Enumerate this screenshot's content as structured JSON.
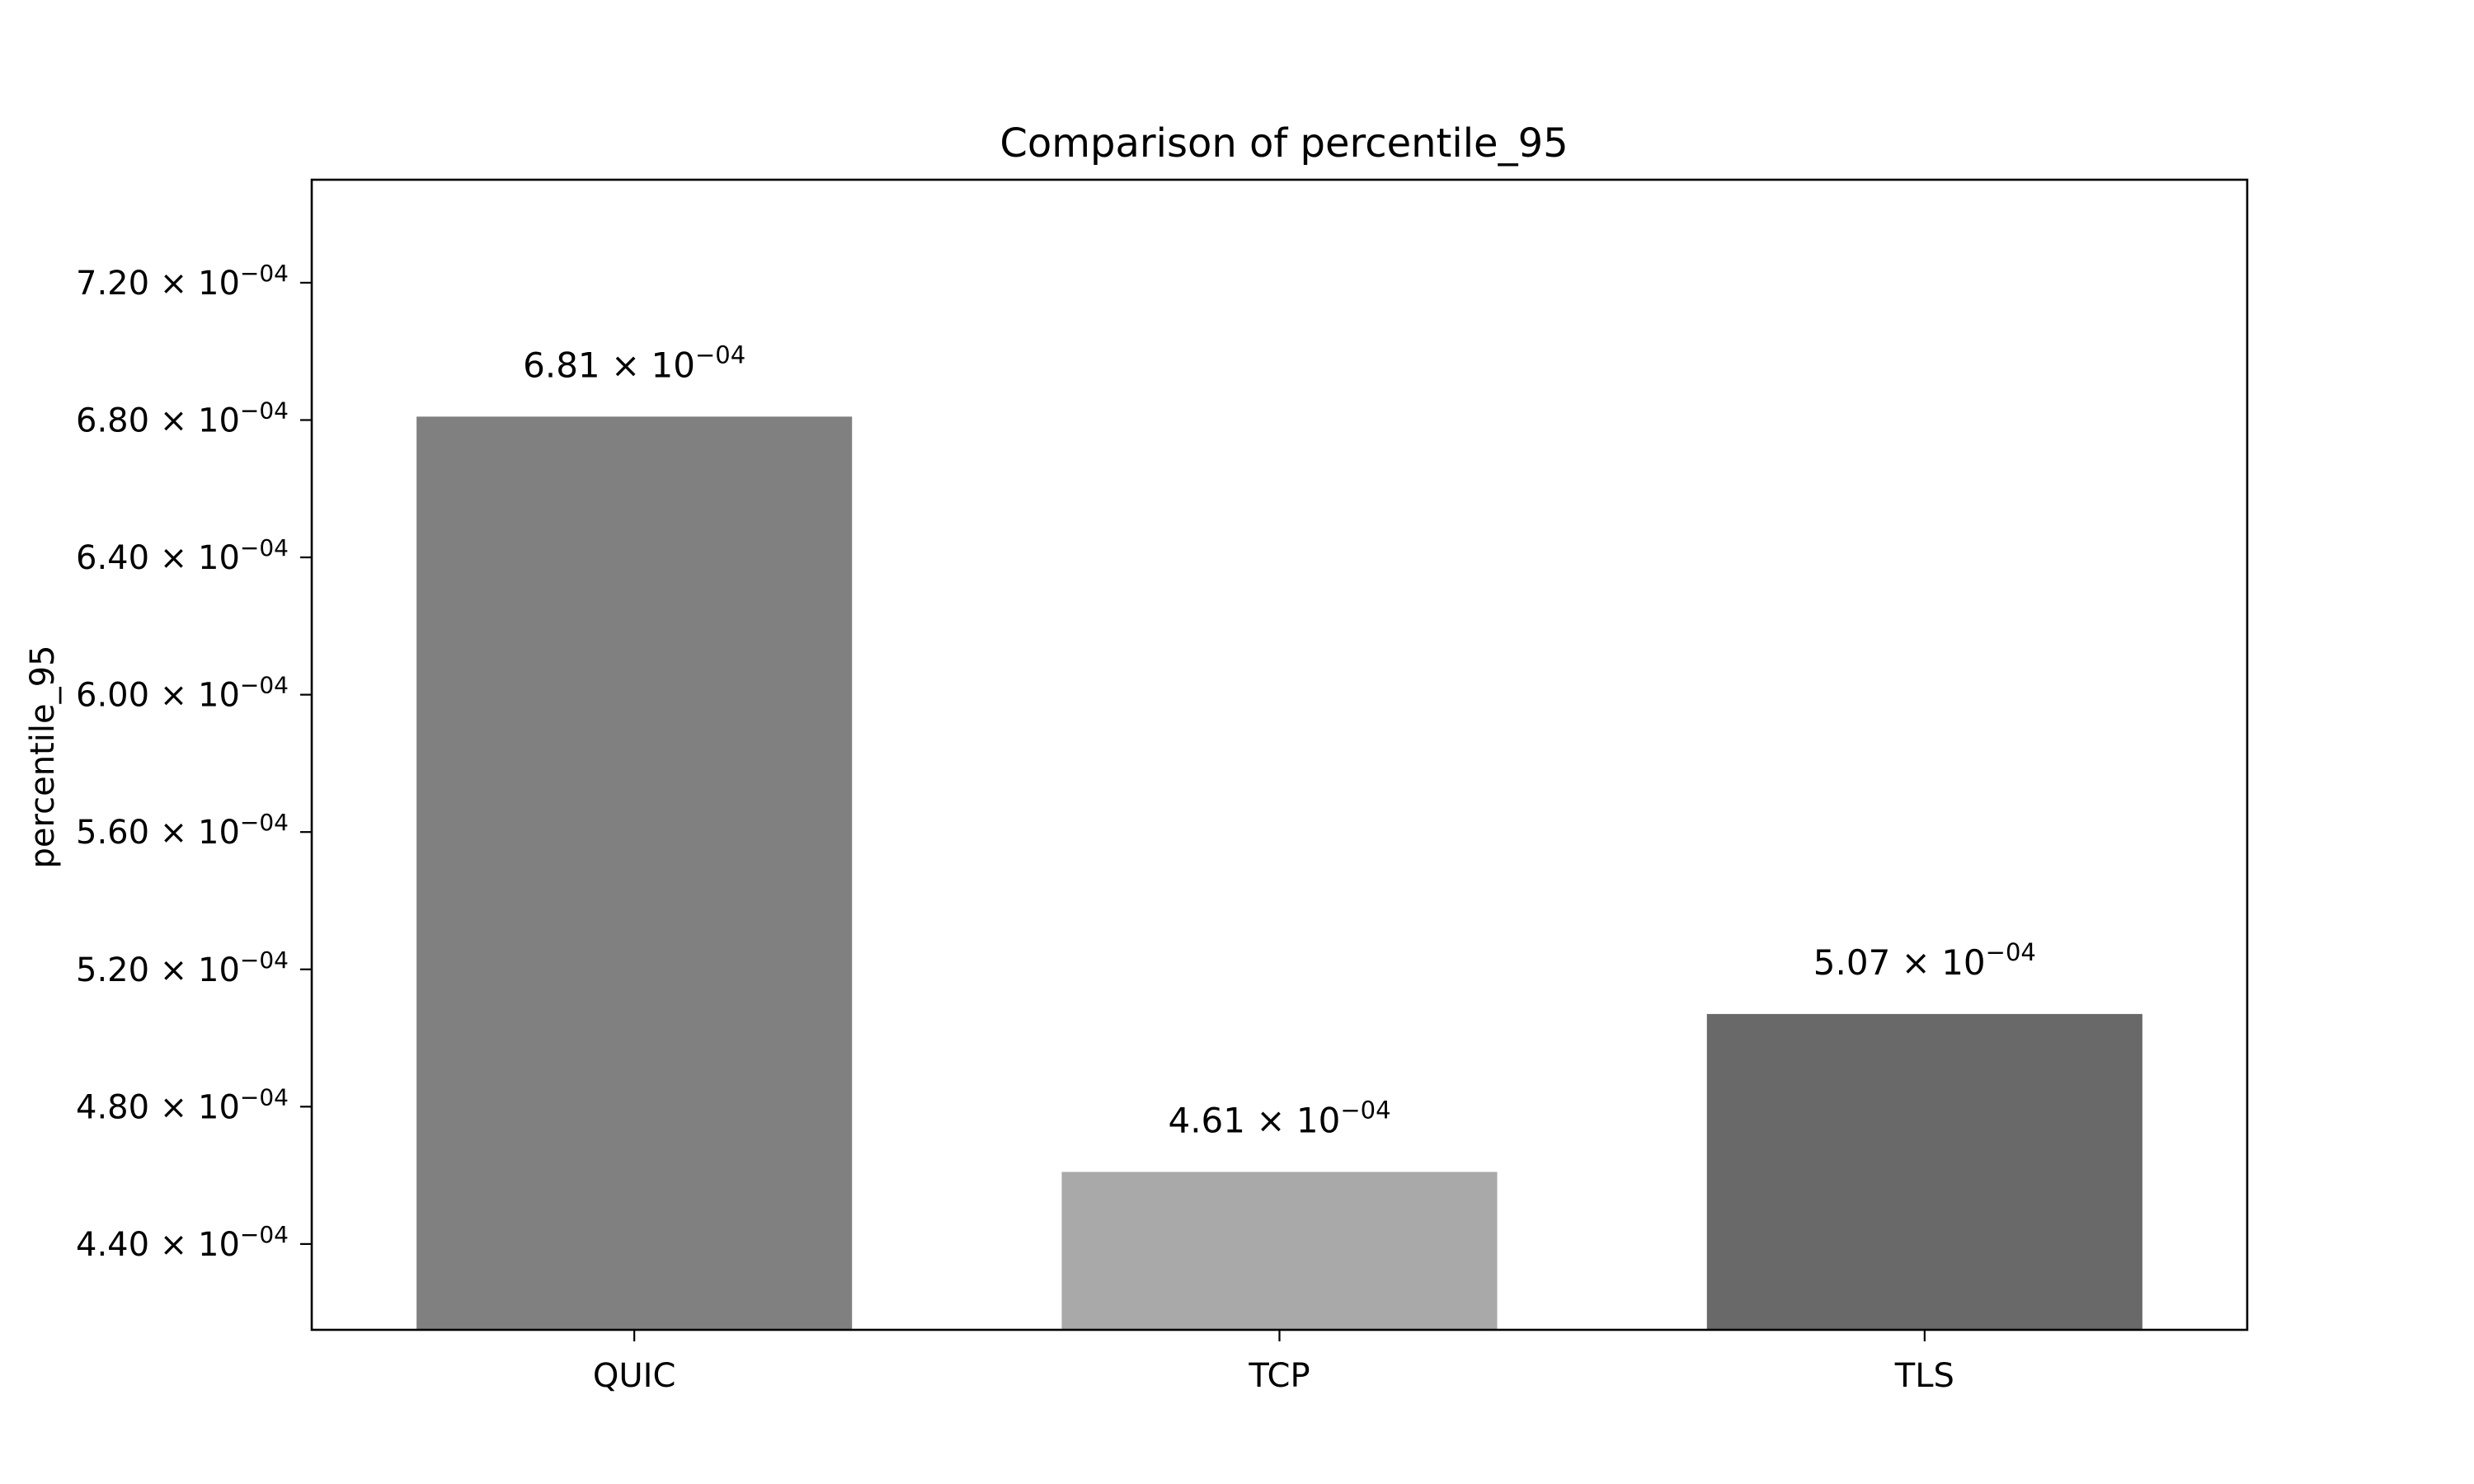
{
  "chart_data": {
    "type": "bar",
    "title": "Comparison of percentile_95",
    "xlabel": "",
    "ylabel": "percentile_95",
    "categories": [
      "QUIC",
      "TCP",
      "TLS"
    ],
    "values": [
      0.000681,
      0.000461,
      0.000507
    ],
    "value_labels": [
      "6.81",
      "4.61",
      "5.07"
    ],
    "value_label_exponent": "−04",
    "colors": [
      "#808080",
      "#a9a9a9",
      "#696969"
    ],
    "ylim": [
      0.000415,
      0.00075
    ],
    "yticks": [
      0.00044,
      0.00048,
      0.00052,
      0.00056,
      0.0006,
      0.00064,
      0.00068,
      0.00072
    ],
    "ytick_labels": [
      "4.40",
      "4.80",
      "5.20",
      "5.60",
      "6.00",
      "6.40",
      "6.80",
      "7.20"
    ],
    "ytick_exponent": "−04",
    "times_symbol": "×",
    "power_base": "10",
    "grid": false,
    "legend": "none"
  }
}
